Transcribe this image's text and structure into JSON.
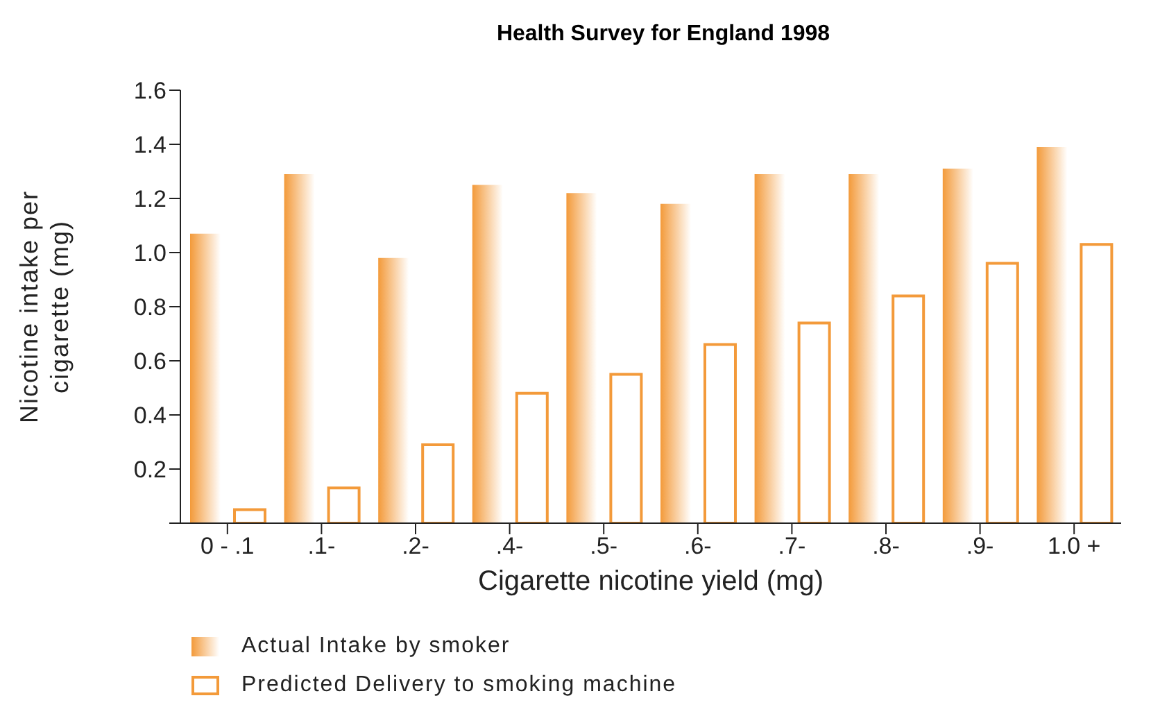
{
  "chart_data": {
    "type": "bar",
    "title": "Health Survey for England 1998",
    "xlabel": "Cigarette nicotine yield (mg)",
    "ylabel": "Nicotine intake per cigarette (mg)",
    "categories": [
      "0 - .1",
      ".1-",
      ".2-",
      ".4-",
      ".5-",
      ".6-",
      ".7-",
      ".8-",
      ".9-",
      "1.0 +"
    ],
    "series": [
      {
        "name": "Actual Intake by smoker",
        "color": "#f39a3a",
        "values": [
          1.07,
          1.29,
          0.98,
          1.25,
          1.22,
          1.18,
          1.29,
          1.29,
          1.31,
          1.39
        ]
      },
      {
        "name": "Predicted Delivery to smoking machine",
        "color": "#f39a3a",
        "values": [
          0.05,
          0.13,
          0.29,
          0.48,
          0.55,
          0.66,
          0.74,
          0.84,
          0.96,
          1.03
        ]
      }
    ],
    "ylim": [
      0,
      1.6
    ],
    "yticks": [
      {
        "value": 0,
        "label": null
      },
      0.2,
      0.4,
      0.6,
      0.8,
      {
        "value": 1,
        "label": "1.0"
      },
      1.2,
      1.4,
      1.6
    ],
    "grid": false,
    "legend": "bottom left"
  }
}
